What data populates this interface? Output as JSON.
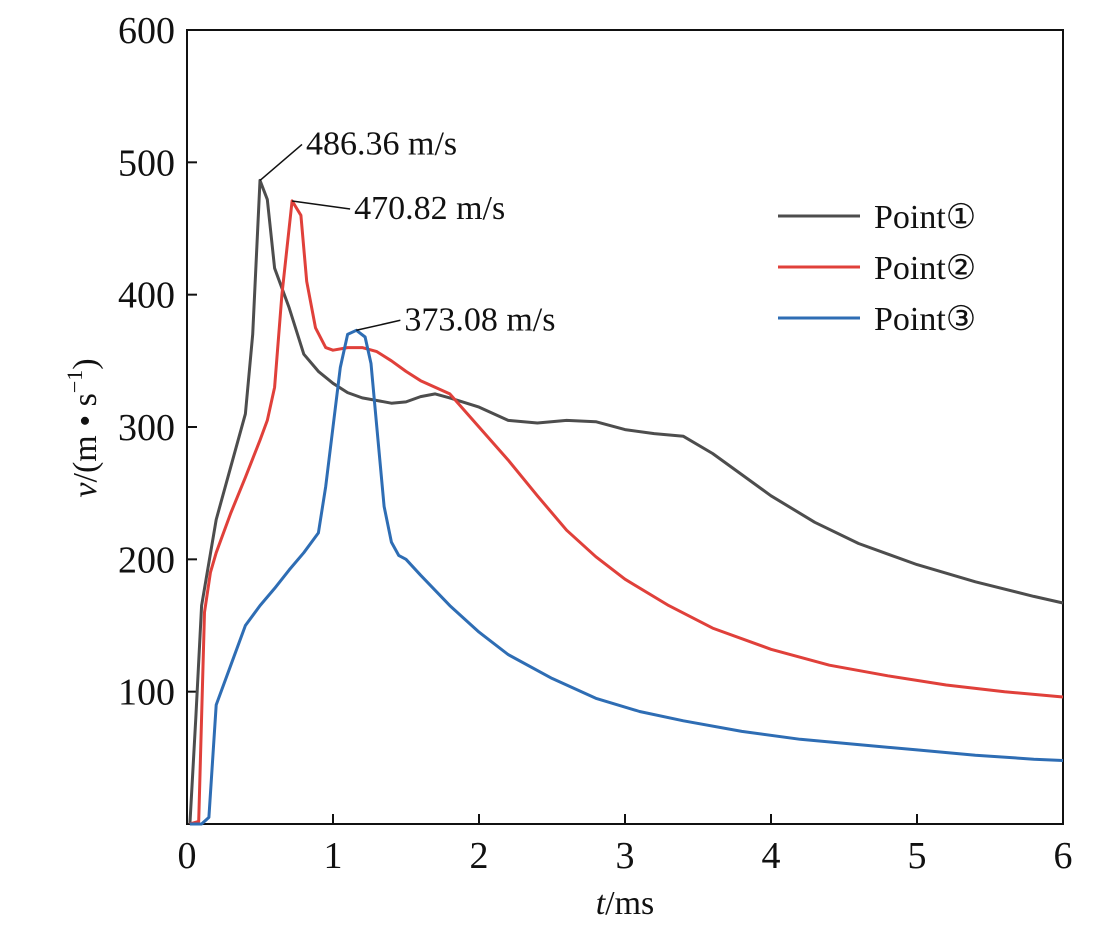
{
  "chart_data": {
    "type": "line",
    "xlabel": {
      "var": "t",
      "unit": "/ms"
    },
    "ylabel": {
      "var": "v",
      "unit": "/(m • s",
      "sup": "−1",
      "close": ")"
    },
    "xlim": [
      0,
      6
    ],
    "ylim": [
      0,
      600
    ],
    "xticks": [
      "0",
      "1",
      "2",
      "3",
      "4",
      "5",
      "6"
    ],
    "yticks": [
      "100",
      "200",
      "300",
      "400",
      "500",
      "600"
    ],
    "grid": false,
    "legend_position": "top-right",
    "series": [
      {
        "name": "Point①",
        "color": "#4d4d4d",
        "x": [
          0.02,
          0.06,
          0.1,
          0.2,
          0.3,
          0.4,
          0.45,
          0.5,
          0.55,
          0.6,
          0.7,
          0.8,
          0.9,
          1.0,
          1.1,
          1.2,
          1.3,
          1.4,
          1.5,
          1.6,
          1.7,
          1.8,
          2.0,
          2.2,
          2.4,
          2.6,
          2.8,
          3.0,
          3.2,
          3.4,
          3.6,
          3.8,
          4.0,
          4.3,
          4.6,
          5.0,
          5.4,
          5.8,
          6.0
        ],
        "y": [
          0,
          80,
          165,
          230,
          270,
          310,
          370,
          486.36,
          472,
          420,
          390,
          355,
          342,
          333,
          326,
          322,
          320,
          318,
          319,
          323,
          325,
          322,
          315,
          305,
          303,
          305,
          304,
          298,
          295,
          293,
          280,
          264,
          248,
          228,
          212,
          196,
          183,
          172,
          167
        ]
      },
      {
        "name": "Point②",
        "color": "#e0403a",
        "x": [
          0.02,
          0.08,
          0.12,
          0.16,
          0.2,
          0.3,
          0.4,
          0.5,
          0.55,
          0.6,
          0.65,
          0.72,
          0.78,
          0.82,
          0.88,
          0.95,
          1.0,
          1.1,
          1.2,
          1.3,
          1.4,
          1.5,
          1.6,
          1.8,
          2.0,
          2.2,
          2.4,
          2.6,
          2.8,
          3.0,
          3.3,
          3.6,
          4.0,
          4.4,
          4.8,
          5.2,
          5.6,
          6.0
        ],
        "y": [
          0,
          2,
          160,
          190,
          205,
          235,
          262,
          290,
          305,
          330,
          400,
          470.82,
          460,
          410,
          375,
          360,
          358,
          360,
          360,
          357,
          350,
          342,
          335,
          325,
          300,
          275,
          248,
          222,
          202,
          185,
          165,
          148,
          132,
          120,
          112,
          105,
          100,
          96
        ]
      },
      {
        "name": "Point③",
        "color": "#2e6db4",
        "x": [
          0.02,
          0.1,
          0.15,
          0.2,
          0.3,
          0.4,
          0.5,
          0.6,
          0.7,
          0.8,
          0.9,
          0.95,
          1.0,
          1.05,
          1.1,
          1.16,
          1.22,
          1.26,
          1.3,
          1.35,
          1.4,
          1.45,
          1.5,
          1.6,
          1.8,
          2.0,
          2.2,
          2.5,
          2.8,
          3.1,
          3.4,
          3.8,
          4.2,
          4.6,
          5.0,
          5.4,
          5.8,
          6.0
        ],
        "y": [
          0,
          0,
          5,
          90,
          120,
          150,
          165,
          178,
          192,
          205,
          220,
          255,
          300,
          345,
          370,
          373.08,
          368,
          348,
          300,
          240,
          213,
          203,
          200,
          188,
          165,
          145,
          128,
          110,
          95,
          85,
          78,
          70,
          64,
          60,
          56,
          52,
          49,
          48
        ]
      }
    ],
    "annotations": [
      {
        "text": "486.36 m/s",
        "series": 0,
        "x": 0.5,
        "y": 486.36
      },
      {
        "text": "470.82 m/s",
        "series": 1,
        "x": 0.72,
        "y": 470.82
      },
      {
        "text": "373.08 m/s",
        "series": 2,
        "x": 1.16,
        "y": 373.08
      }
    ]
  }
}
